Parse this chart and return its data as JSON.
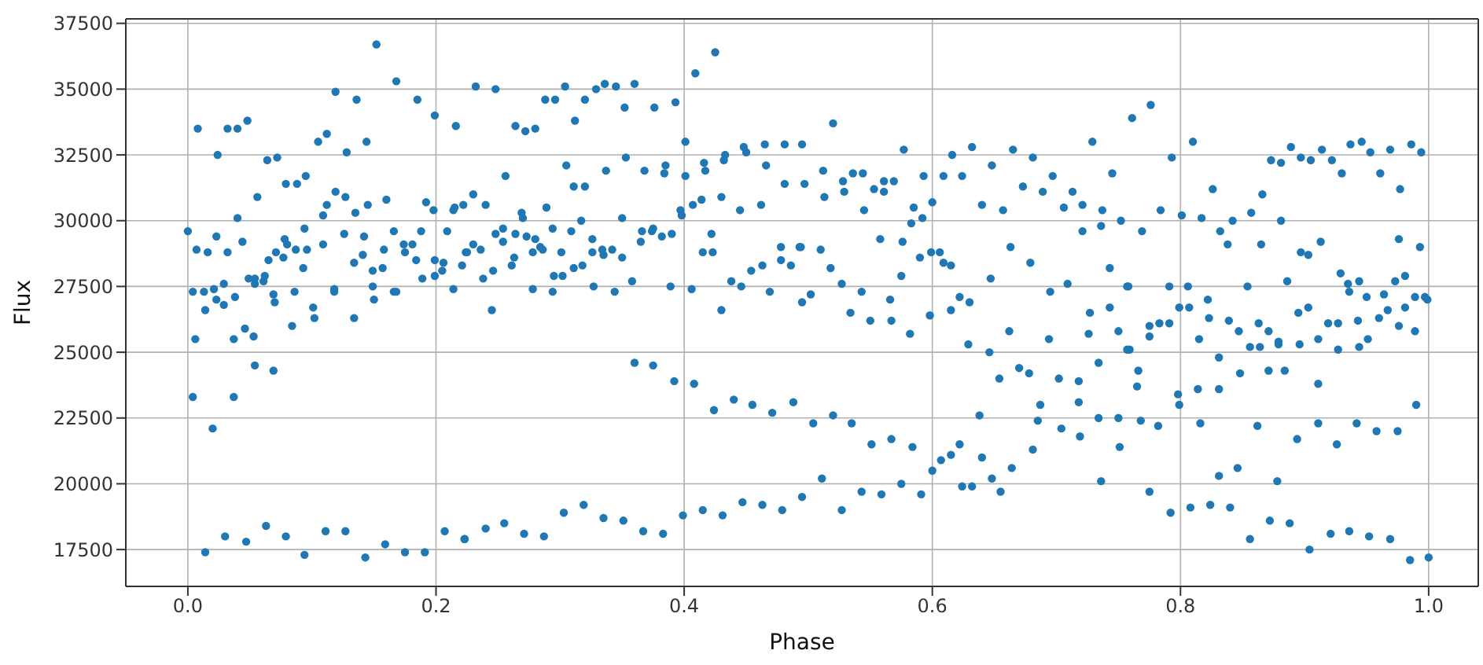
{
  "chart_data": {
    "type": "scatter",
    "xlabel": "Phase",
    "ylabel": "Flux",
    "xlim": [
      -0.05,
      1.04
    ],
    "ylim": [
      16100,
      37670
    ],
    "xticks": [
      {
        "value": 0,
        "label": "0.0"
      },
      {
        "value": 0.2,
        "label": "0.2"
      },
      {
        "value": 0.4,
        "label": "0.4"
      },
      {
        "value": 0.6,
        "label": "0.6"
      },
      {
        "value": 0.8,
        "label": "0.8"
      },
      {
        "value": 1,
        "label": "1.0"
      }
    ],
    "yticks": [
      17500,
      20000,
      22500,
      25000,
      27500,
      30000,
      32500,
      35000,
      37500
    ],
    "grid": true,
    "marker": "circle",
    "series": [
      {
        "color": "#1f77b4",
        "x": [
          0,
          0.008,
          0.007,
          0.016,
          0.004,
          0.013,
          0.029,
          0.021,
          0.023,
          0.014,
          0.006,
          0.004,
          0.02,
          0.014,
          0.024,
          0.023,
          0.032,
          0.04,
          0.048,
          0.04,
          0.044,
          0.032,
          0.029,
          0.038,
          0.049,
          0.054,
          0.054,
          0.061,
          0.062,
          0.046,
          0.037,
          0.053,
          0.054,
          0.037,
          0.069,
          0.056,
          0.064,
          0.072,
          0.065,
          0.071,
          0.077,
          0.078,
          0.08,
          0.087,
          0.096,
          0.094,
          0.093,
          0.069,
          0.07,
          0.086,
          0.084,
          0.079,
          0.088,
          0.095,
          0.101,
          0.102,
          0.105,
          0.112,
          0.119,
          0.109,
          0.112,
          0.119,
          0.127,
          0.128,
          0.135,
          0.144,
          0.136,
          0.152,
          0.168,
          0.185,
          0.199,
          0.216,
          0.109,
          0.126,
          0.142,
          0.134,
          0.141,
          0.145,
          0.158,
          0.16,
          0.166,
          0.174,
          0.175,
          0.181,
          0.188,
          0.184,
          0.192,
          0.198,
          0.149,
          0.157,
          0.149,
          0.15,
          0.118,
          0.118,
          0.166,
          0.168,
          0.189,
          0.199,
          0.199,
          0.206,
          0.205,
          0.209,
          0.214,
          0.214,
          0.215,
          0.222,
          0.221,
          0.224,
          0.134,
          0.03,
          0.047,
          0.063,
          0.079,
          0.094,
          0.111,
          0.127,
          0.143,
          0.159,
          0.175,
          0.191,
          0.207,
          0.223,
          0.232,
          0.248,
          0.264,
          0.272,
          0.28,
          0.288,
          0.296,
          0.304,
          0.312,
          0.32,
          0.329,
          0.336,
          0.345,
          0.352,
          0.36,
          0.376,
          0.393,
          0.401,
          0.409,
          0.425,
          0.23,
          0.24,
          0.256,
          0.269,
          0.27,
          0.289,
          0.305,
          0.311,
          0.32,
          0.337,
          0.353,
          0.35,
          0.368,
          0.384,
          0.385,
          0.401,
          0.397,
          0.398,
          0.407,
          0.414,
          0.416,
          0.417,
          0.43,
          0.433,
          0.432,
          0.445,
          0.448,
          0.45,
          0.462,
          0.466,
          0.465,
          0.481,
          0.481,
          0.225,
          0.23,
          0.236,
          0.238,
          0.246,
          0.245,
          0.248,
          0.254,
          0.254,
          0.261,
          0.263,
          0.264,
          0.273,
          0.278,
          0.278,
          0.28,
          0.284,
          0.286,
          0.294,
          0.294,
          0.295,
          0.301,
          0.302,
          0.309,
          0.311,
          0.317,
          0.318,
          0.326,
          0.327,
          0.326,
          0.334,
          0.335,
          0.342,
          0.35,
          0.344,
          0.358,
          0.365,
          0.366,
          0.374,
          0.375,
          0.382,
          0.39,
          0.389,
          0.406,
          0.415,
          0.422,
          0.423,
          0.43,
          0.438,
          0.446,
          0.454,
          0.463,
          0.469,
          0.478,
          0.478,
          0.486,
          0.493,
          0.36,
          0.375,
          0.392,
          0.408,
          0.424,
          0.44,
          0.455,
          0.471,
          0.488,
          0.223,
          0.24,
          0.255,
          0.271,
          0.287,
          0.303,
          0.319,
          0.335,
          0.351,
          0.367,
          0.383,
          0.399,
          0.415,
          0.431,
          0.447,
          0.463,
          0.479,
          0.495,
          0.52,
          0.497,
          0.512,
          0.513,
          0.528,
          0.529,
          0.536,
          0.544,
          0.545,
          0.553,
          0.561,
          0.561,
          0.569,
          0.577,
          0.585,
          0.583,
          0.593,
          0.592,
          0.6,
          0.609,
          0.616,
          0.624,
          0.632,
          0.64,
          0.648,
          0.657,
          0.665,
          0.673,
          0.681,
          0.689,
          0.697,
          0.706,
          0.713,
          0.721,
          0.729,
          0.721,
          0.737,
          0.736,
          0.745,
          0.752,
          0.494,
          0.51,
          0.518,
          0.527,
          0.495,
          0.502,
          0.543,
          0.534,
          0.55,
          0.558,
          0.566,
          0.567,
          0.575,
          0.576,
          0.582,
          0.59,
          0.598,
          0.599,
          0.606,
          0.609,
          0.615,
          0.615,
          0.622,
          0.63,
          0.629,
          0.647,
          0.646,
          0.662,
          0.663,
          0.679,
          0.695,
          0.694,
          0.709,
          0.727,
          0.726,
          0.743,
          0.743,
          0.75,
          0.757,
          0.757,
          0.504,
          0.52,
          0.535,
          0.551,
          0.567,
          0.584,
          0.607,
          0.615,
          0.622,
          0.6,
          0.638,
          0.64,
          0.654,
          0.67,
          0.678,
          0.687,
          0.685,
          0.702,
          0.704,
          0.718,
          0.718,
          0.719,
          0.734,
          0.734,
          0.75,
          0.751,
          0.736,
          0.664,
          0.681,
          0.495,
          0.511,
          0.527,
          0.543,
          0.559,
          0.575,
          0.591,
          0.624,
          0.632,
          0.648,
          0.655,
          0.761,
          0.776,
          0.793,
          0.81,
          0.826,
          0.784,
          0.801,
          0.817,
          0.769,
          0.832,
          0.838,
          0.842,
          0.857,
          0.865,
          0.866,
          0.873,
          0.881,
          0.881,
          0.889,
          0.897,
          0.905,
          0.914,
          0.922,
          0.93,
          0.937,
          0.946,
          0.953,
          0.961,
          0.969,
          0.977,
          0.986,
          0.994,
          0.976,
          0.993,
          0.897,
          0.903,
          0.913,
          0.929,
          0.935,
          0.936,
          0.944,
          0.95,
          0.964,
          0.973,
          0.981,
          0.989,
          0.997,
          0.999,
          0.981,
          0.989,
          0.976,
          0.967,
          0.96,
          0.951,
          0.944,
          0.943,
          0.927,
          0.927,
          0.919,
          0.911,
          0.903,
          0.895,
          0.896,
          0.886,
          0.879,
          0.879,
          0.871,
          0.863,
          0.864,
          0.856,
          0.854,
          0.847,
          0.839,
          0.823,
          0.822,
          0.815,
          0.807,
          0.806,
          0.799,
          0.791,
          0.791,
          0.783,
          0.775,
          0.775,
          0.758,
          0.759,
          0.766,
          0.765,
          0.831,
          0.848,
          0.871,
          0.884,
          0.911,
          0.99,
          0.798,
          0.799,
          0.814,
          0.831,
          0.768,
          0.782,
          0.816,
          0.862,
          0.911,
          0.942,
          0.958,
          0.975,
          0.894,
          0.926,
          0.775,
          0.831,
          0.846,
          0.878,
          0.792,
          0.808,
          0.824,
          0.84,
          0.856,
          0.872,
          0.888,
          0.904,
          0.921,
          0.936,
          0.952,
          0.969,
          0.985,
          1.0
        ],
        "values": [
          29600,
          33500,
          28900,
          28800,
          27300,
          27300,
          27600,
          27400,
          27000,
          26600,
          25500,
          23300,
          22100,
          17400,
          32500,
          29400,
          33500,
          33500,
          33800,
          30100,
          29200,
          28800,
          26800,
          27100,
          27800,
          27800,
          27600,
          27700,
          27900,
          25900,
          25500,
          25600,
          24500,
          23300,
          24300,
          30900,
          32300,
          32400,
          28500,
          28800,
          28600,
          29300,
          29100,
          28900,
          28900,
          29700,
          28200,
          27200,
          26900,
          27300,
          26000,
          31400,
          31400,
          31700,
          26700,
          26300,
          33000,
          33300,
          34900,
          30200,
          30600,
          31100,
          30900,
          32600,
          30300,
          33000,
          34600,
          36700,
          35300,
          34600,
          34000,
          33600,
          29100,
          29500,
          29400,
          28400,
          28700,
          30600,
          28900,
          30800,
          29600,
          29100,
          28800,
          29100,
          29600,
          28500,
          30700,
          30400,
          28100,
          28200,
          27500,
          27000,
          27400,
          27300,
          27300,
          27300,
          27800,
          27900,
          28500,
          28400,
          28100,
          29600,
          27400,
          30400,
          30500,
          30600,
          28300,
          28800,
          26300,
          18000,
          17800,
          18400,
          18000,
          17300,
          18200,
          18200,
          17200,
          17700,
          17400,
          17400,
          18200,
          17900,
          35100,
          35000,
          33600,
          33400,
          33500,
          34600,
          34600,
          35100,
          33800,
          34600,
          35000,
          35200,
          35100,
          34300,
          35200,
          34300,
          34500,
          33000,
          35600,
          36400,
          31000,
          30600,
          31700,
          30300,
          30100,
          30500,
          32100,
          31300,
          31300,
          31900,
          32400,
          30100,
          31900,
          31800,
          32100,
          31700,
          30400,
          30200,
          30600,
          30800,
          32200,
          31900,
          30900,
          32500,
          32300,
          30400,
          32800,
          32600,
          30600,
          32100,
          32900,
          31400,
          32900,
          28800,
          29100,
          28900,
          27800,
          28100,
          26600,
          29500,
          29200,
          29700,
          28300,
          28600,
          29500,
          29400,
          27400,
          28800,
          29300,
          29000,
          28900,
          29700,
          27300,
          27900,
          28800,
          27900,
          29600,
          28200,
          30000,
          28300,
          29300,
          27500,
          28800,
          28900,
          28700,
          28900,
          28600,
          27300,
          27700,
          29200,
          29600,
          29600,
          29700,
          29400,
          29500,
          27500,
          27400,
          28800,
          29500,
          28800,
          26600,
          27700,
          27500,
          28100,
          28300,
          27300,
          28500,
          29000,
          28300,
          29000,
          24600,
          24500,
          23900,
          23800,
          22800,
          23200,
          23000,
          22700,
          23100,
          17900,
          18300,
          18500,
          18100,
          18000,
          18900,
          19200,
          18700,
          18600,
          18200,
          18100,
          18800,
          19000,
          18800,
          19300,
          19200,
          19000,
          32900,
          33700,
          31400,
          31900,
          30900,
          31500,
          31100,
          31800,
          31800,
          30400,
          31200,
          31500,
          31100,
          31500,
          32700,
          30500,
          29900,
          31700,
          30100,
          30700,
          31700,
          32500,
          31700,
          32800,
          30600,
          32100,
          30400,
          32700,
          31300,
          32400,
          31100,
          31700,
          30500,
          31100,
          30600,
          33000,
          29600,
          30400,
          29800,
          31800,
          30000,
          29000,
          28900,
          28200,
          27600,
          26900,
          27200,
          27300,
          26500,
          26200,
          29300,
          27000,
          26200,
          27900,
          29200,
          25700,
          28600,
          26400,
          28800,
          28800,
          28400,
          28300,
          26600,
          27100,
          26900,
          25300,
          27800,
          25000,
          25800,
          29000,
          28400,
          27300,
          25500,
          27600,
          26500,
          25700,
          28200,
          26700,
          25800,
          27500,
          25100,
          22300,
          22600,
          22300,
          21500,
          21700,
          21400,
          20900,
          21100,
          21500,
          20500,
          22600,
          21000,
          24000,
          24400,
          24200,
          23000,
          22400,
          24000,
          22100,
          23900,
          23100,
          21800,
          24600,
          22500,
          22500,
          21400,
          20100,
          20600,
          21300,
          19500,
          20200,
          19000,
          19700,
          19600,
          20000,
          19600,
          19900,
          19900,
          20200,
          19700,
          33900,
          34400,
          32400,
          33000,
          31200,
          30400,
          30200,
          30100,
          29600,
          29600,
          29100,
          30000,
          30300,
          29100,
          31000,
          32300,
          32200,
          30000,
          32800,
          32400,
          32300,
          32700,
          32300,
          31800,
          32900,
          33000,
          32600,
          31800,
          32700,
          31200,
          32900,
          32600,
          29300,
          29000,
          28800,
          28700,
          29200,
          28000,
          27600,
          27300,
          27700,
          27100,
          27200,
          27700,
          27900,
          27100,
          27100,
          27000,
          26700,
          25800,
          26000,
          26600,
          26300,
          25500,
          25200,
          26200,
          26100,
          25100,
          26100,
          25500,
          26700,
          26500,
          25300,
          27700,
          25300,
          25400,
          25800,
          26100,
          25200,
          25200,
          27500,
          25800,
          26200,
          26300,
          27000,
          25500,
          26700,
          27500,
          26700,
          27500,
          26100,
          26100,
          26000,
          25600,
          27500,
          25100,
          24300,
          23700,
          24800,
          24200,
          24300,
          24300,
          23800,
          23000,
          23400,
          23000,
          23600,
          23600,
          22400,
          22200,
          22300,
          22200,
          22300,
          22300,
          22000,
          22000,
          21700,
          21500,
          19700,
          20300,
          20600,
          20100,
          18900,
          19100,
          19200,
          19100,
          17900,
          18600,
          18500,
          17500,
          18100,
          18200,
          18000,
          17900,
          17100,
          17200
        ]
      }
    ]
  }
}
